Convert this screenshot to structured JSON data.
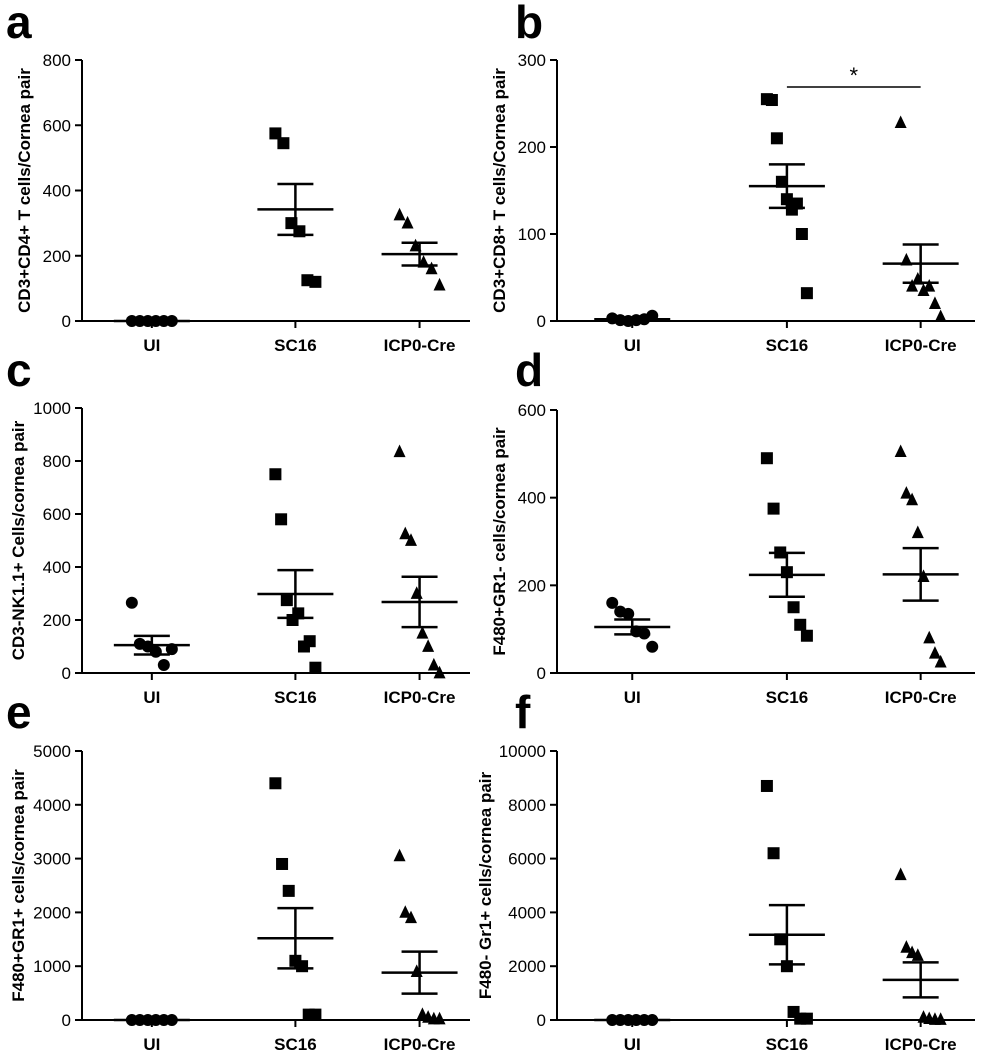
{
  "chart_data": [
    {
      "panel": "a",
      "type": "scatter",
      "ylabel": "CD3+CD4+ T cells/Cornea pair",
      "ylim": [
        0,
        800
      ],
      "yticks": [
        0,
        200,
        400,
        600,
        800
      ],
      "categories": [
        "UI",
        "SC16",
        "ICP0-Cre"
      ],
      "series": [
        {
          "name": "UI",
          "marker": "circle",
          "values": [
            0,
            0,
            0,
            0,
            0,
            0
          ],
          "mean": 0,
          "sem": 0
        },
        {
          "name": "SC16",
          "marker": "square",
          "values": [
            575,
            545,
            300,
            275,
            125,
            120
          ],
          "mean": 342,
          "sem": 78
        },
        {
          "name": "ICP0-Cre",
          "marker": "triangle",
          "values": [
            325,
            300,
            230,
            180,
            160,
            110
          ],
          "mean": 205,
          "sem": 35
        }
      ]
    },
    {
      "panel": "b",
      "type": "scatter",
      "ylabel": "CD3+CD8+ T cells/Cornea pair",
      "ylim": [
        0,
        300
      ],
      "yticks": [
        0,
        100,
        200,
        300
      ],
      "categories": [
        "UI",
        "SC16",
        "ICP0-Cre"
      ],
      "series": [
        {
          "name": "UI",
          "marker": "circle",
          "values": [
            3,
            1,
            0,
            1,
            2,
            6
          ],
          "mean": 2,
          "sem": 1
        },
        {
          "name": "SC16",
          "marker": "square",
          "values": [
            255,
            254,
            210,
            160,
            140,
            128,
            135,
            100,
            32
          ],
          "mean": 155,
          "sem": 25
        },
        {
          "name": "ICP0-Cre",
          "marker": "triangle",
          "values": [
            228,
            70,
            40,
            48,
            35,
            40,
            20,
            5
          ],
          "mean": 66,
          "sem": 22
        }
      ],
      "annotation": {
        "text": "*",
        "between": [
          "SC16",
          "ICP0-Cre"
        ]
      }
    },
    {
      "panel": "c",
      "type": "scatter",
      "ylabel": "CD3-NK1.1+ Cells/cornea pair",
      "ylim": [
        0,
        1000
      ],
      "yticks": [
        0,
        200,
        400,
        600,
        800,
        1000
      ],
      "categories": [
        "UI",
        "SC16",
        "ICP0-Cre"
      ],
      "series": [
        {
          "name": "UI",
          "marker": "circle",
          "values": [
            265,
            110,
            100,
            80,
            30,
            90
          ],
          "mean": 105,
          "sem": 35
        },
        {
          "name": "SC16",
          "marker": "square",
          "values": [
            750,
            580,
            275,
            200,
            225,
            100,
            120,
            20
          ],
          "mean": 298,
          "sem": 90
        },
        {
          "name": "ICP0-Cre",
          "marker": "triangle",
          "values": [
            835,
            525,
            500,
            300,
            150,
            100,
            30,
            0
          ],
          "mean": 268,
          "sem": 95
        }
      ]
    },
    {
      "panel": "d",
      "type": "scatter",
      "ylabel": "F480+GR1- cells/cornea pair",
      "ylim": [
        0,
        600
      ],
      "yticks": [
        0,
        200,
        400,
        600
      ],
      "categories": [
        "UI",
        "SC16",
        "ICP0-Cre"
      ],
      "series": [
        {
          "name": "UI",
          "marker": "circle",
          "values": [
            160,
            140,
            135,
            95,
            90,
            60
          ],
          "mean": 105,
          "sem": 17
        },
        {
          "name": "SC16",
          "marker": "square",
          "values": [
            490,
            375,
            275,
            230,
            150,
            110,
            85
          ],
          "mean": 224,
          "sem": 50
        },
        {
          "name": "ICP0-Cre",
          "marker": "triangle",
          "values": [
            505,
            410,
            395,
            320,
            220,
            80,
            45,
            25
          ],
          "mean": 225,
          "sem": 60
        }
      ]
    },
    {
      "panel": "e",
      "type": "scatter",
      "ylabel": "F480+GR1+ cells/cornea pair",
      "ylim": [
        0,
        5000
      ],
      "yticks": [
        0,
        1000,
        2000,
        3000,
        4000,
        5000
      ],
      "categories": [
        "UI",
        "SC16",
        "ICP0-Cre"
      ],
      "series": [
        {
          "name": "UI",
          "marker": "circle",
          "values": [
            0,
            0,
            0,
            0,
            0,
            0
          ],
          "mean": 0,
          "sem": 0
        },
        {
          "name": "SC16",
          "marker": "square",
          "values": [
            4400,
            2900,
            2400,
            1100,
            1000,
            100,
            100
          ],
          "mean": 1520,
          "sem": 560
        },
        {
          "name": "ICP0-Cre",
          "marker": "triangle",
          "values": [
            3050,
            2000,
            1900,
            900,
            100,
            50,
            20,
            20
          ],
          "mean": 880,
          "sem": 390
        }
      ]
    },
    {
      "panel": "f",
      "type": "scatter",
      "ylabel": "F480- Gr1+ cells/cornea pair",
      "ylim": [
        0,
        10000
      ],
      "yticks": [
        0,
        2000,
        4000,
        6000,
        8000,
        10000
      ],
      "categories": [
        "UI",
        "SC16",
        "ICP0-Cre"
      ],
      "series": [
        {
          "name": "UI",
          "marker": "circle",
          "values": [
            0,
            0,
            0,
            0,
            0,
            0
          ],
          "mean": 0,
          "sem": 0
        },
        {
          "name": "SC16",
          "marker": "square",
          "values": [
            8700,
            6200,
            3000,
            2000,
            300,
            50,
            50
          ],
          "mean": 3170,
          "sem": 1100
        },
        {
          "name": "ICP0-Cre",
          "marker": "triangle",
          "values": [
            5400,
            2700,
            2500,
            2400,
            100,
            50,
            20,
            20
          ],
          "mean": 1490,
          "sem": 650
        }
      ]
    }
  ]
}
